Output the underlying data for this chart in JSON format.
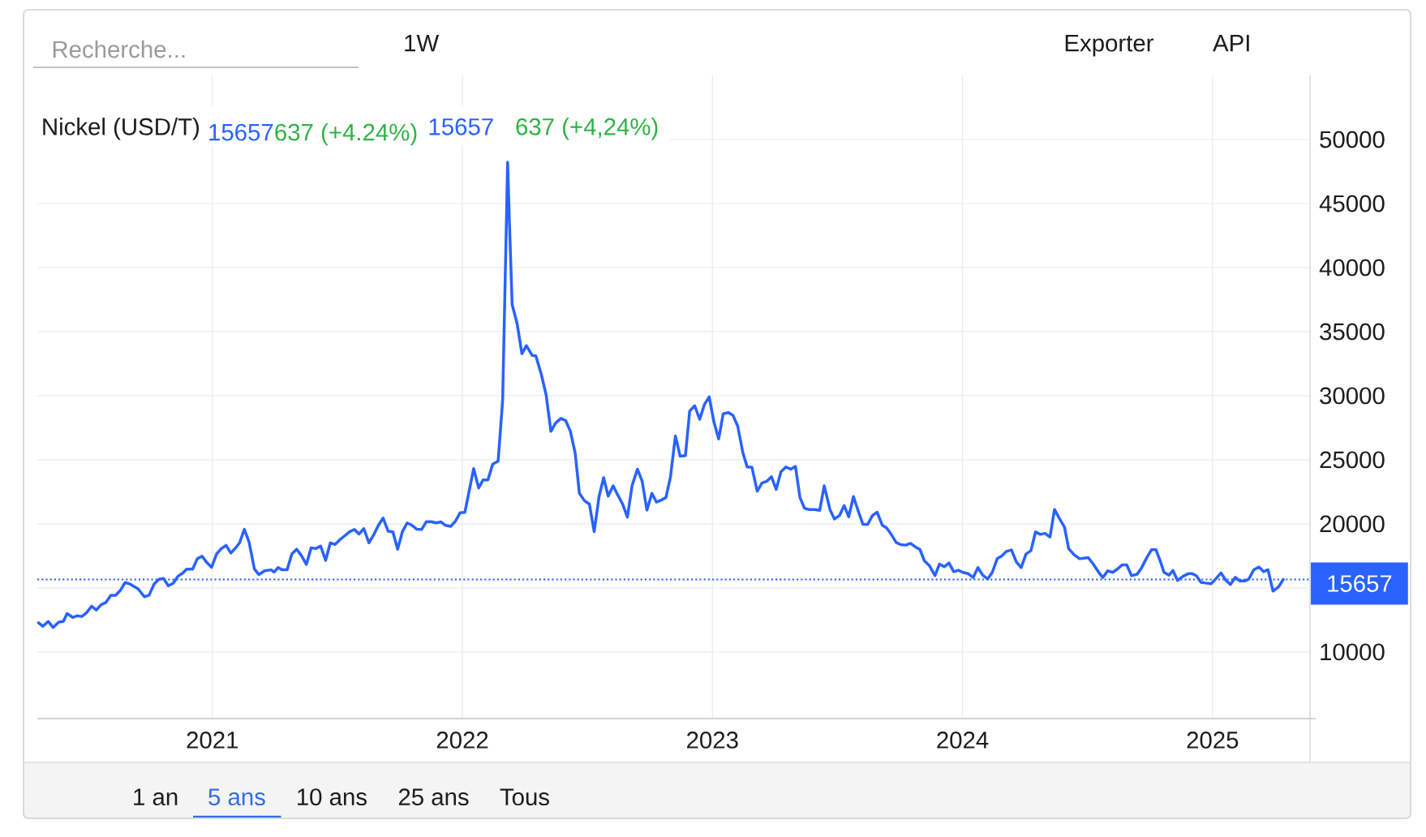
{
  "chart_data": {
    "type": "line",
    "title": "Nickel (USD/T)",
    "annotations": [
      "15657",
      "637 (+4.24%)",
      "15657",
      "637 (+4,24%)",
      "Recherche...",
      "1W",
      "Exporter",
      "API",
      "1 an",
      "5 ans",
      "10 ans",
      "25 ans",
      "Tous"
    ],
    "x": [
      2020.305,
      2020.322,
      2020.344,
      2020.363,
      2020.386,
      2020.404,
      2020.419,
      2020.442,
      2020.459,
      2020.478,
      2020.497,
      2020.517,
      2020.536,
      2020.555,
      2020.574,
      2020.594,
      2020.613,
      2020.632,
      2020.651,
      2020.671,
      2020.703,
      2020.728,
      2020.747,
      2020.767,
      2020.786,
      2020.805,
      2020.824,
      2020.844,
      2020.863,
      2020.882,
      2020.897,
      2020.921,
      2020.94,
      2020.959,
      2020.978,
      2020.997,
      2021.017,
      2021.036,
      2021.055,
      2021.074,
      2021.094,
      2021.109,
      2021.128,
      2021.147,
      2021.168,
      2021.186,
      2021.209,
      2021.235,
      2021.247,
      2021.263,
      2021.279,
      2021.299,
      2021.318,
      2021.337,
      2021.356,
      2021.376,
      2021.395,
      2021.414,
      2021.433,
      2021.453,
      2021.472,
      2021.491,
      2021.51,
      2021.529,
      2021.549,
      2021.568,
      2021.587,
      2021.606,
      2021.626,
      2021.645,
      2021.664,
      2021.683,
      2021.703,
      2021.722,
      2021.741,
      2021.76,
      2021.779,
      2021.799,
      2021.818,
      2021.837,
      2021.856,
      2021.876,
      2021.895,
      2021.914,
      2021.933,
      2021.953,
      2021.972,
      2021.991,
      2022.01,
      2022.045,
      2022.065,
      2022.083,
      2022.102,
      2022.121,
      2022.143,
      2022.161,
      2022.181,
      2022.188,
      2022.199,
      2022.219,
      2022.238,
      2022.256,
      2022.279,
      2022.294,
      2022.316,
      2022.335,
      2022.354,
      2022.372,
      2022.394,
      2022.413,
      2022.432,
      2022.451,
      2022.468,
      2022.489,
      2022.508,
      2022.527,
      2022.547,
      2022.565,
      2022.583,
      2022.603,
      2022.622,
      2022.641,
      2022.66,
      2022.679,
      2022.7,
      2022.719,
      2022.738,
      2022.758,
      2022.776,
      2022.795,
      2022.814,
      2022.832,
      2022.852,
      2022.871,
      2022.892,
      2022.909,
      2022.929,
      2022.949,
      2022.968,
      2022.987,
      2023.006,
      2023.025,
      2023.043,
      2023.063,
      2023.082,
      2023.101,
      2023.122,
      2023.139,
      2023.158,
      2023.179,
      2023.198,
      2023.217,
      2023.236,
      2023.255,
      2023.274,
      2023.294,
      2023.313,
      2023.332,
      2023.35,
      2023.368,
      2023.387,
      2023.409,
      2023.429,
      2023.447,
      2023.47,
      2023.488,
      2023.508,
      2023.527,
      2023.545,
      2023.564,
      2023.583,
      2023.602,
      2023.621,
      2023.64,
      2023.659,
      2023.679,
      2023.697,
      2023.715,
      2023.735,
      2023.753,
      2023.773,
      2023.792,
      2023.811,
      2023.83,
      2023.848,
      2023.868,
      2023.89,
      2023.908,
      2023.927,
      2023.946,
      2023.965,
      2023.984,
      2024.002,
      2024.022,
      2024.043,
      2024.062,
      2024.081,
      2024.101,
      2024.119,
      2024.139,
      2024.157,
      2024.176,
      2024.196,
      2024.216,
      2024.235,
      2024.254,
      2024.274,
      2024.292,
      2024.312,
      2024.33,
      2024.35,
      2024.368,
      2024.387,
      2024.408,
      2024.425,
      2024.447,
      2024.468,
      2024.485,
      2024.503,
      2024.523,
      2024.543,
      2024.561,
      2024.581,
      2024.601,
      2024.62,
      2024.639,
      2024.657,
      2024.676,
      2024.698,
      2024.715,
      2024.737,
      2024.756,
      2024.774,
      2024.79,
      2024.806,
      2024.826,
      2024.842,
      2024.86,
      2024.882,
      2024.903,
      2024.919,
      2024.935,
      2024.954,
      2024.973,
      2024.995,
      2025.014,
      2025.034,
      2025.054,
      2025.072,
      2025.091,
      2025.11,
      2025.129,
      2025.145,
      2025.165,
      2025.186,
      2025.204,
      2025.222,
      2025.242,
      2025.263,
      2025.283
    ],
    "series": [
      {
        "color": "#2962ff",
        "values": [
          12280,
          12010,
          12380,
          11910,
          12330,
          12380,
          13000,
          12700,
          12820,
          12770,
          13070,
          13570,
          13270,
          13690,
          13860,
          14430,
          14430,
          14800,
          15420,
          15300,
          14930,
          14310,
          14430,
          15300,
          15670,
          15740,
          15170,
          15370,
          15920,
          16160,
          16460,
          16460,
          17280,
          17480,
          16980,
          16610,
          17650,
          18070,
          18320,
          17720,
          18140,
          18520,
          19580,
          18570,
          16490,
          16040,
          16340,
          16410,
          16240,
          16590,
          16410,
          16410,
          17650,
          18020,
          17530,
          16830,
          18120,
          18070,
          18270,
          17150,
          18520,
          18390,
          18760,
          19060,
          19380,
          19560,
          19210,
          19630,
          18520,
          19130,
          19880,
          20450,
          19430,
          19380,
          18020,
          19380,
          20070,
          19880,
          19580,
          19560,
          20170,
          20170,
          20070,
          20150,
          19880,
          19800,
          20200,
          20870,
          20900,
          24310,
          22800,
          23430,
          23430,
          24650,
          24900,
          29640,
          48220,
          43630,
          37110,
          35630,
          33280,
          33910,
          33150,
          33110,
          31640,
          30060,
          27220,
          27850,
          28230,
          28060,
          27220,
          25530,
          22380,
          21790,
          21540,
          19390,
          22170,
          23600,
          22170,
          22970,
          22230,
          21540,
          20530,
          23010,
          24270,
          23320,
          21070,
          22380,
          21700,
          21850,
          22060,
          23640,
          26860,
          25280,
          25320,
          28800,
          29220,
          28160,
          29320,
          29910,
          27950,
          26630,
          28590,
          28690,
          28480,
          27640,
          25530,
          24440,
          24420,
          22550,
          23180,
          23320,
          23680,
          22690,
          24060,
          24440,
          24270,
          24480,
          22060,
          21220,
          21120,
          21120,
          21050,
          22970,
          21120,
          20380,
          20650,
          21430,
          20550,
          22130,
          21010,
          19960,
          19960,
          20650,
          20910,
          19900,
          19680,
          19180,
          18550,
          18380,
          18340,
          18480,
          18210,
          18000,
          17110,
          16730,
          15960,
          16860,
          16650,
          16950,
          16270,
          16380,
          16210,
          16120,
          15810,
          16590,
          16000,
          15700,
          16210,
          17280,
          17490,
          17850,
          17960,
          17010,
          16590,
          17640,
          17910,
          19370,
          19180,
          19260,
          18970,
          21120,
          20440,
          19750,
          18060,
          17580,
          17280,
          17320,
          17370,
          16860,
          16270,
          15810,
          16330,
          16210,
          16480,
          16800,
          16800,
          15960,
          16060,
          16520,
          17360,
          17980,
          17980,
          17150,
          16210,
          16000,
          16360,
          15580,
          15900,
          16110,
          16110,
          15960,
          15440,
          15380,
          15330,
          15730,
          16170,
          15580,
          15270,
          15830,
          15540,
          15540,
          15690,
          16420,
          16630,
          16270,
          16420,
          14750,
          15060,
          15657
        ]
      }
    ],
    "xlim": [
      2020.3,
      2025.39
    ],
    "ylim": [
      4800,
      55000
    ],
    "xticks": [
      2021,
      2022,
      2023,
      2024,
      2025
    ],
    "yticks": [
      10000,
      {
        "value": 15000,
        "label": null
      },
      20000,
      25000,
      30000,
      35000,
      40000,
      45000,
      50000
    ],
    "grid": true,
    "ref_lines": [
      {
        "axis": "y",
        "value": 15657,
        "label": "15657",
        "color": "#2962ff",
        "line_style": "dotted"
      }
    ]
  }
}
